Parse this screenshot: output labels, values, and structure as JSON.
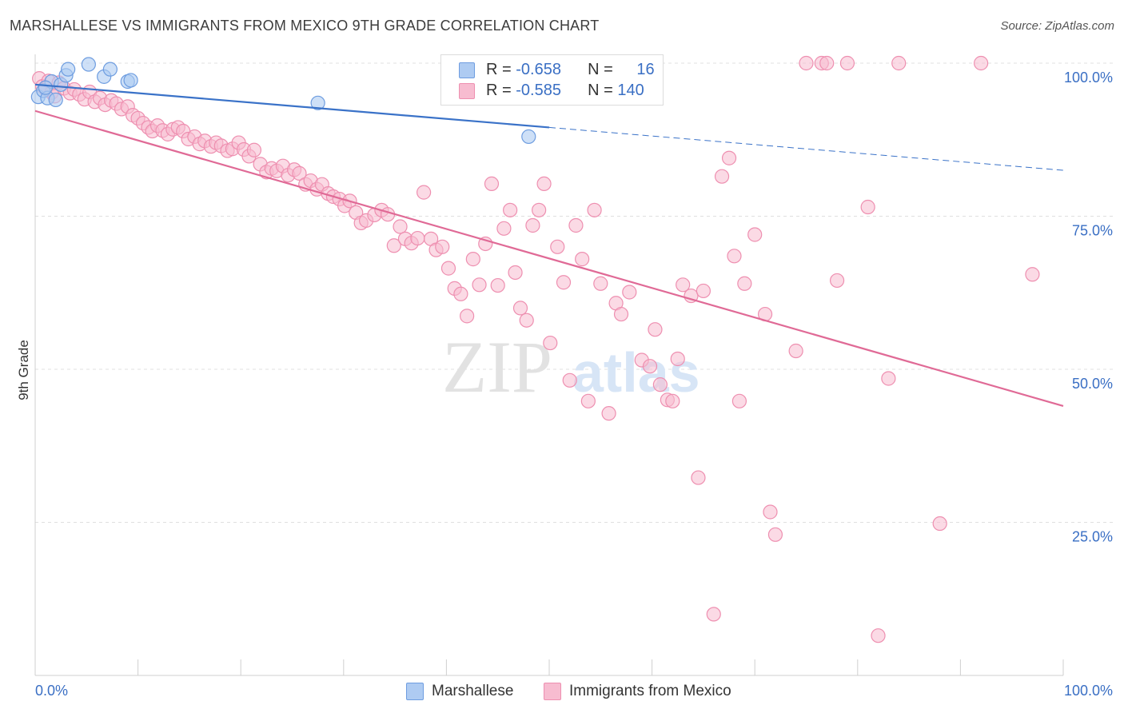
{
  "header": {
    "title": "MARSHALLESE VS IMMIGRANTS FROM MEXICO 9TH GRADE CORRELATION CHART",
    "source": "Source: ZipAtlas.com"
  },
  "watermark": {
    "zip": "ZIP",
    "atlas": "atlas"
  },
  "legend": {
    "rows": [
      {
        "r_label": "R = ",
        "r_value": "-0.658",
        "n_label": "N = ",
        "n_value": "16"
      },
      {
        "r_label": "R = ",
        "r_value": "-0.585",
        "n_label": "N = ",
        "n_value": "140"
      }
    ]
  },
  "bottom_legend": [
    "Marshallese",
    "Immigrants from Mexico"
  ],
  "colors": {
    "marshallese_fill": "#aecbf2",
    "marshallese_stroke": "#6e9de0",
    "marshallese_line": "#3a72c8",
    "mexico_fill": "#f7bcd0",
    "mexico_stroke": "#ee8fb0",
    "mexico_line": "#e06a96",
    "tick_label": "#3a6fc4",
    "grid": "#e0e0e0"
  },
  "chart_data": {
    "type": "scatter",
    "title": "MARSHALLESE VS IMMIGRANTS FROM MEXICO 9TH GRADE CORRELATION CHART",
    "xlabel": "",
    "ylabel": "9th Grade",
    "xlim": [
      0,
      100
    ],
    "ylim": [
      0,
      100
    ],
    "x_tick_labels": [
      "0.0%",
      "100.0%"
    ],
    "y_ticks": [
      25,
      50,
      75,
      100
    ],
    "y_tick_labels": [
      "25.0%",
      "50.0%",
      "75.0%",
      "100.0%"
    ],
    "grid": "horizontal dashed",
    "legend_position": "top-center",
    "series": [
      {
        "name": "Marshallese",
        "R": -0.658,
        "N": 16,
        "points": [
          [
            0.3,
            94.5
          ],
          [
            0.8,
            95.5
          ],
          [
            1.2,
            94.3
          ],
          [
            1.6,
            97.0
          ],
          [
            2.0,
            94.0
          ],
          [
            2.5,
            96.5
          ],
          [
            3.0,
            98.0
          ],
          [
            3.2,
            99.0
          ],
          [
            5.2,
            99.8
          ],
          [
            6.7,
            97.8
          ],
          [
            7.3,
            99.0
          ],
          [
            9.0,
            97.0
          ],
          [
            9.3,
            97.2
          ],
          [
            27.5,
            93.5
          ],
          [
            48.0,
            88.0
          ],
          [
            1.0,
            96.0
          ]
        ],
        "trend": {
          "x": [
            0,
            50
          ],
          "y": [
            96.5,
            89.5
          ],
          "dashed_to": [
            100,
            82.5
          ]
        }
      },
      {
        "name": "Immigrants from Mexico",
        "R": -0.585,
        "N": 140,
        "points": [
          [
            0.4,
            97.5
          ],
          [
            0.7,
            96.2
          ],
          [
            1.0,
            95.8
          ],
          [
            1.3,
            97.1
          ],
          [
            1.6,
            95.2
          ],
          [
            1.9,
            94.6
          ],
          [
            2.3,
            96.8
          ],
          [
            2.8,
            95.9
          ],
          [
            3.4,
            95.1
          ],
          [
            3.8,
            95.7
          ],
          [
            4.3,
            94.9
          ],
          [
            4.8,
            94.1
          ],
          [
            5.3,
            95.3
          ],
          [
            5.8,
            93.7
          ],
          [
            6.3,
            94.3
          ],
          [
            6.8,
            93.2
          ],
          [
            7.4,
            93.9
          ],
          [
            7.9,
            93.4
          ],
          [
            8.4,
            92.5
          ],
          [
            9.0,
            92.9
          ],
          [
            9.5,
            91.5
          ],
          [
            10.0,
            91.0
          ],
          [
            10.5,
            90.2
          ],
          [
            11.0,
            89.5
          ],
          [
            11.4,
            88.9
          ],
          [
            11.9,
            89.8
          ],
          [
            12.4,
            89.0
          ],
          [
            12.9,
            88.4
          ],
          [
            13.4,
            89.2
          ],
          [
            13.9,
            89.5
          ],
          [
            14.4,
            88.9
          ],
          [
            14.9,
            87.6
          ],
          [
            15.5,
            88.0
          ],
          [
            16.0,
            86.8
          ],
          [
            16.5,
            87.3
          ],
          [
            17.1,
            86.4
          ],
          [
            17.6,
            87.0
          ],
          [
            18.1,
            86.5
          ],
          [
            18.7,
            85.7
          ],
          [
            19.2,
            86.0
          ],
          [
            19.8,
            87.0
          ],
          [
            20.3,
            85.9
          ],
          [
            20.8,
            84.8
          ],
          [
            21.3,
            85.8
          ],
          [
            21.9,
            83.5
          ],
          [
            22.5,
            82.2
          ],
          [
            23.0,
            82.8
          ],
          [
            23.5,
            82.4
          ],
          [
            24.1,
            83.2
          ],
          [
            24.6,
            81.7
          ],
          [
            25.2,
            82.6
          ],
          [
            25.7,
            82.0
          ],
          [
            26.3,
            80.2
          ],
          [
            26.8,
            80.8
          ],
          [
            27.4,
            79.4
          ],
          [
            27.9,
            80.2
          ],
          [
            28.5,
            78.7
          ],
          [
            29.0,
            78.2
          ],
          [
            29.6,
            77.8
          ],
          [
            30.1,
            76.7
          ],
          [
            30.6,
            77.5
          ],
          [
            31.2,
            75.6
          ],
          [
            31.7,
            73.9
          ],
          [
            32.2,
            74.3
          ],
          [
            33.0,
            75.2
          ],
          [
            33.7,
            76.0
          ],
          [
            34.3,
            75.3
          ],
          [
            34.9,
            70.2
          ],
          [
            35.5,
            73.3
          ],
          [
            36.0,
            71.3
          ],
          [
            36.6,
            70.6
          ],
          [
            37.2,
            71.4
          ],
          [
            37.8,
            78.9
          ],
          [
            38.5,
            71.3
          ],
          [
            39.0,
            69.5
          ],
          [
            39.6,
            70.0
          ],
          [
            40.2,
            66.5
          ],
          [
            40.8,
            63.2
          ],
          [
            41.4,
            62.3
          ],
          [
            42.0,
            58.7
          ],
          [
            42.6,
            68.0
          ],
          [
            43.2,
            63.8
          ],
          [
            43.8,
            70.5
          ],
          [
            44.4,
            80.3
          ],
          [
            45.0,
            63.7
          ],
          [
            45.6,
            73.0
          ],
          [
            46.2,
            76.0
          ],
          [
            46.7,
            65.8
          ],
          [
            47.2,
            60.0
          ],
          [
            47.8,
            58.0
          ],
          [
            48.4,
            73.5
          ],
          [
            49.0,
            76.0
          ],
          [
            49.5,
            80.3
          ],
          [
            50.1,
            54.3
          ],
          [
            50.8,
            70.0
          ],
          [
            51.4,
            64.2
          ],
          [
            52.0,
            48.2
          ],
          [
            52.6,
            73.5
          ],
          [
            53.2,
            68.0
          ],
          [
            53.8,
            44.8
          ],
          [
            54.4,
            76.0
          ],
          [
            55.0,
            64.0
          ],
          [
            55.8,
            42.8
          ],
          [
            56.5,
            60.8
          ],
          [
            57.0,
            59.0
          ],
          [
            57.8,
            62.6
          ],
          [
            59.0,
            51.5
          ],
          [
            59.8,
            50.5
          ],
          [
            60.3,
            56.5
          ],
          [
            60.8,
            47.5
          ],
          [
            61.5,
            45.0
          ],
          [
            62.0,
            44.8
          ],
          [
            62.5,
            51.7
          ],
          [
            63.0,
            63.8
          ],
          [
            63.8,
            62.0
          ],
          [
            64.5,
            32.3
          ],
          [
            65.0,
            62.8
          ],
          [
            66.0,
            10.0
          ],
          [
            66.8,
            81.5
          ],
          [
            67.5,
            84.5
          ],
          [
            68.0,
            68.5
          ],
          [
            68.5,
            44.8
          ],
          [
            69.0,
            64.0
          ],
          [
            70.0,
            72.0
          ],
          [
            71.0,
            59.0
          ],
          [
            71.5,
            26.7
          ],
          [
            72.0,
            23.0
          ],
          [
            74.0,
            53.0
          ],
          [
            75.0,
            100.0
          ],
          [
            76.5,
            100.0
          ],
          [
            77.0,
            100.0
          ],
          [
            78.0,
            64.5
          ],
          [
            79.0,
            100.0
          ],
          [
            81.0,
            76.5
          ],
          [
            82.0,
            6.5
          ],
          [
            83.0,
            48.5
          ],
          [
            84.0,
            100.0
          ],
          [
            88.0,
            24.8
          ],
          [
            92.0,
            100.0
          ],
          [
            97.0,
            65.5
          ]
        ],
        "trend": {
          "x": [
            0,
            100
          ],
          "y": [
            92.2,
            44.0
          ]
        }
      }
    ]
  }
}
